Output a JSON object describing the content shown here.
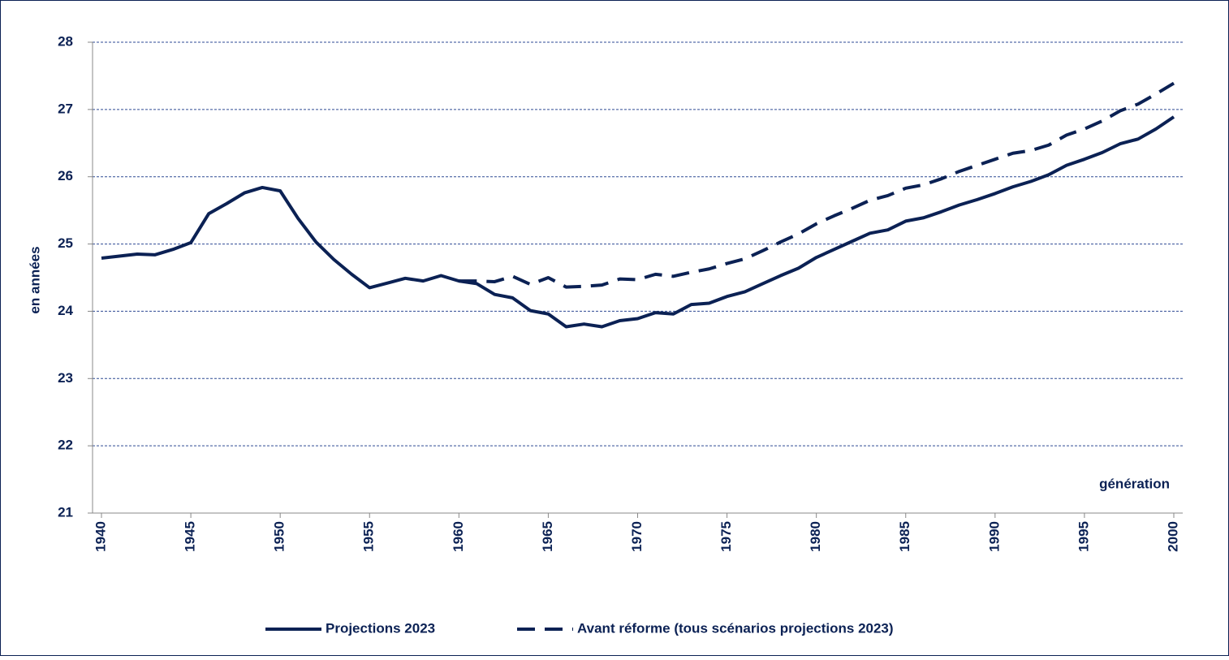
{
  "chart_data": {
    "type": "line",
    "y_label": "en années",
    "annotation": "génération",
    "x": [
      1940,
      1941,
      1942,
      1943,
      1944,
      1945,
      1946,
      1947,
      1948,
      1949,
      1950,
      1951,
      1952,
      1953,
      1954,
      1955,
      1956,
      1957,
      1958,
      1959,
      1960,
      1961,
      1962,
      1963,
      1964,
      1965,
      1966,
      1967,
      1968,
      1969,
      1970,
      1971,
      1972,
      1973,
      1974,
      1975,
      1976,
      1977,
      1978,
      1979,
      1980,
      1981,
      1982,
      1983,
      1984,
      1985,
      1986,
      1987,
      1988,
      1989,
      1990,
      1991,
      1992,
      1993,
      1994,
      1995,
      1996,
      1997,
      1998,
      1999,
      2000
    ],
    "series": [
      {
        "name": "Projections 2023",
        "color": "#0b2154",
        "line_style": "solid",
        "values": [
          24.79,
          24.82,
          24.85,
          24.84,
          24.92,
          25.02,
          25.45,
          25.6,
          25.76,
          25.84,
          25.79,
          25.38,
          25.03,
          24.77,
          24.55,
          24.35,
          24.42,
          24.49,
          24.45,
          24.53,
          24.45,
          24.41,
          24.25,
          24.2,
          24.01,
          23.96,
          23.77,
          23.81,
          23.77,
          23.86,
          23.89,
          23.98,
          23.96,
          24.1,
          24.12,
          24.22,
          24.29,
          24.41,
          24.53,
          24.64,
          24.8,
          24.92,
          25.04,
          25.16,
          25.21,
          25.34,
          25.39,
          25.48,
          25.58,
          25.66,
          25.75,
          25.85,
          25.93,
          26.03,
          26.17,
          26.26,
          26.36,
          26.49,
          26.56,
          26.71,
          26.89
        ]
      },
      {
        "name": "Avant réforme (tous scénarios projections 2023)",
        "color": "#0b2154",
        "line_style": "dashed",
        "values": [
          null,
          null,
          null,
          null,
          null,
          null,
          null,
          null,
          null,
          null,
          null,
          null,
          null,
          null,
          null,
          null,
          null,
          null,
          null,
          null,
          24.45,
          24.45,
          24.44,
          24.52,
          24.4,
          24.5,
          24.36,
          24.37,
          24.39,
          24.48,
          24.47,
          24.55,
          24.52,
          24.58,
          24.63,
          24.71,
          24.78,
          24.9,
          25.03,
          25.15,
          25.3,
          25.42,
          25.53,
          25.65,
          25.72,
          25.83,
          25.88,
          25.97,
          26.08,
          26.17,
          26.26,
          26.35,
          26.39,
          26.47,
          26.62,
          26.71,
          26.83,
          26.98,
          27.08,
          27.23,
          27.39
        ]
      }
    ],
    "xlim": [
      1939.5,
      2000.5
    ],
    "xticks": [
      1940,
      1945,
      1950,
      1955,
      1960,
      1965,
      1970,
      1975,
      1980,
      1985,
      1990,
      1995,
      2000
    ],
    "ylim": [
      21,
      28
    ],
    "yticks": [
      21,
      22,
      23,
      24,
      25,
      26,
      27,
      28
    ],
    "grid": true,
    "grid_style": "dashed",
    "grid_color": "#2e4a94",
    "legend": "bottom"
  }
}
